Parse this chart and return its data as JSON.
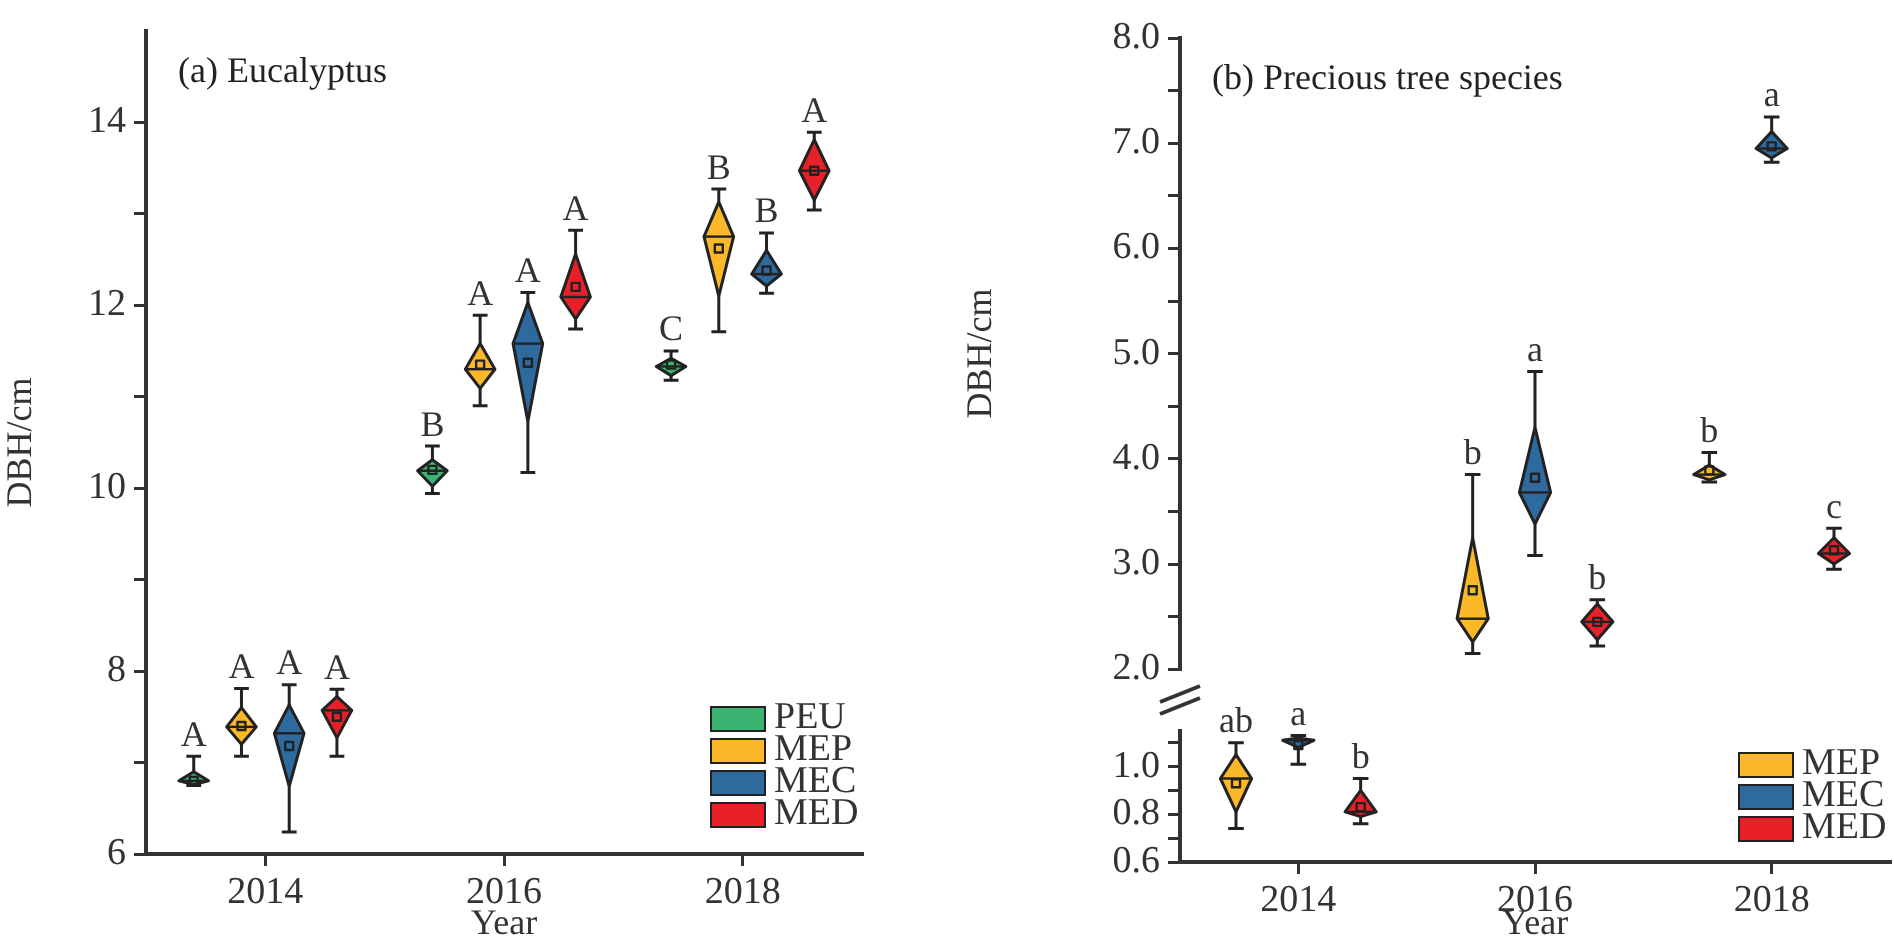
{
  "chart_data": [
    {
      "type": "box",
      "title": "(a) Eucalyptus",
      "xlabel": "Year",
      "ylabel": "DBH/cm",
      "categories": [
        "2014",
        "2016",
        "2018"
      ],
      "ylim": [
        6,
        15
      ],
      "yticks": [
        6,
        {
          "value": 7,
          "label": null
        },
        8,
        {
          "value": 9,
          "label": null
        },
        10,
        {
          "value": 11,
          "label": null
        },
        12,
        {
          "value": 13,
          "label": null
        },
        14
      ],
      "legend": "bottom right",
      "series": [
        {
          "name": "PEU",
          "color": "#3cb371",
          "value_labels": [
            "A",
            "B",
            "C"
          ],
          "boxes": [
            {
              "low": 6.75,
              "q1": 6.76,
              "median": 6.8,
              "q3": 6.9,
              "high": 7.07,
              "mean": 6.8
            },
            {
              "low": 9.94,
              "q1": 10.02,
              "median": 10.19,
              "q3": 10.31,
              "high": 10.46,
              "mean": 10.2
            },
            {
              "low": 11.18,
              "q1": 11.23,
              "median": 11.33,
              "q3": 11.42,
              "high": 11.5,
              "mean": 11.35
            }
          ]
        },
        {
          "name": "MEP",
          "color": "#fbb829",
          "value_labels": [
            "A",
            "A",
            "B"
          ],
          "boxes": [
            {
              "low": 7.07,
              "q1": 7.2,
              "median": 7.39,
              "q3": 7.6,
              "high": 7.81,
              "mean": 7.4
            },
            {
              "low": 10.9,
              "q1": 11.09,
              "median": 11.3,
              "q3": 11.58,
              "high": 11.89,
              "mean": 11.35
            },
            {
              "low": 11.71,
              "q1": 12.1,
              "median": 12.75,
              "q3": 13.13,
              "high": 13.27,
              "mean": 12.62
            }
          ]
        },
        {
          "name": "MEC",
          "color": "#2e6a9e",
          "value_labels": [
            "A",
            "A",
            "B"
          ],
          "boxes": [
            {
              "low": 6.24,
              "q1": 6.74,
              "median": 7.32,
              "q3": 7.63,
              "high": 7.85,
              "mean": 7.18
            },
            {
              "low": 10.17,
              "q1": 10.73,
              "median": 11.58,
              "q3": 12.03,
              "high": 12.14,
              "mean": 11.37
            },
            {
              "low": 12.13,
              "q1": 12.21,
              "median": 12.34,
              "q3": 12.6,
              "high": 12.79,
              "mean": 12.38
            }
          ]
        },
        {
          "name": "MED",
          "color": "#e8202a",
          "value_labels": [
            "A",
            "A",
            "A"
          ],
          "boxes": [
            {
              "low": 7.07,
              "q1": 7.27,
              "median": 7.57,
              "q3": 7.72,
              "high": 7.8,
              "mean": 7.5
            },
            {
              "low": 11.74,
              "q1": 11.85,
              "median": 12.09,
              "q3": 12.56,
              "high": 12.82,
              "mean": 12.2
            },
            {
              "low": 13.04,
              "q1": 13.15,
              "median": 13.47,
              "q3": 13.81,
              "high": 13.89,
              "mean": 13.47
            }
          ]
        }
      ]
    },
    {
      "type": "box",
      "title": "(b) Precious tree species",
      "ylabel": "DBH/cm",
      "categories": [
        "2014",
        "2016",
        "2018"
      ],
      "ylim": [
        2,
        8
      ],
      "yticks": [
        {
          "value": 2,
          "label": "2.0"
        },
        {
          "value": 2.5,
          "label": null
        },
        {
          "value": 3,
          "label": "3.0"
        },
        {
          "value": 3.5,
          "label": null
        },
        {
          "value": 4,
          "label": "4.0"
        },
        {
          "value": 4.5,
          "label": null
        },
        {
          "value": 5,
          "label": "5.0"
        },
        {
          "value": 5.5,
          "label": null
        },
        {
          "value": 6,
          "label": "6.0"
        },
        {
          "value": 6.5,
          "label": null
        },
        {
          "value": 7,
          "label": "7.0"
        },
        {
          "value": 7.5,
          "label": null
        },
        {
          "value": 8,
          "label": "8.0"
        }
      ],
      "tick_labels": "y",
      "series": [
        {
          "color": "#fbb829",
          "value_labels": [
            null,
            "b",
            "b"
          ],
          "boxes": [
            null,
            {
              "low": 2.15,
              "q1": 2.26,
              "median": 2.48,
              "q3": 3.25,
              "high": 3.85,
              "mean": 2.75
            },
            {
              "low": 3.78,
              "q1": 3.8,
              "median": 3.85,
              "q3": 3.94,
              "high": 4.06,
              "mean": 3.89
            }
          ]
        },
        {
          "color": "#2e6a9e",
          "value_labels": [
            null,
            "a",
            "a"
          ],
          "boxes": [
            null,
            {
              "low": 3.08,
              "q1": 3.38,
              "median": 3.68,
              "q3": 4.3,
              "high": 4.83,
              "mean": 3.82
            },
            {
              "low": 6.82,
              "q1": 6.86,
              "median": 6.95,
              "q3": 7.11,
              "high": 7.25,
              "mean": 6.97
            }
          ]
        },
        {
          "color": "#e8202a",
          "value_labels": [
            null,
            "b",
            "c"
          ],
          "boxes": [
            null,
            {
              "low": 2.22,
              "q1": 2.28,
              "median": 2.45,
              "q3": 2.62,
              "high": 2.66,
              "mean": 2.45
            },
            {
              "low": 2.95,
              "q1": 3.0,
              "median": 3.1,
              "q3": 3.25,
              "high": 3.34,
              "mean": 3.13
            }
          ]
        }
      ]
    },
    {
      "type": "box",
      "xlabel": "Year",
      "categories": [
        "2014",
        "2016",
        "2018"
      ],
      "ylim": [
        0.6,
        1.15
      ],
      "yticks": [
        0.6,
        {
          "value": 0.7,
          "label": null
        },
        0.8,
        {
          "value": 0.9,
          "label": null
        },
        {
          "value": 1,
          "label": "1.0"
        },
        {
          "value": 1.1,
          "label": null
        }
      ],
      "legend": "right",
      "series": [
        {
          "name": "MEP",
          "color": "#fbb829",
          "value_labels": [
            "ab",
            null,
            null
          ],
          "boxes": [
            {
              "low": 0.74,
              "q1": 0.81,
              "median": 0.95,
              "q3": 1.05,
              "high": 1.1,
              "mean": 0.93
            },
            null,
            null
          ]
        },
        {
          "name": "MEC",
          "color": "#2e6a9e",
          "value_labels": [
            "a",
            null,
            null
          ],
          "boxes": [
            {
              "low": 1.01,
              "q1": 1.08,
              "median": 1.11,
              "q3": 1.12,
              "high": 1.13,
              "mean": 1.09
            },
            null,
            null
          ]
        },
        {
          "name": "MED",
          "color": "#e8202a",
          "value_labels": [
            "b",
            null,
            null
          ],
          "boxes": [
            {
              "low": 0.76,
              "q1": 0.79,
              "median": 0.81,
              "q3": 0.9,
              "high": 0.95,
              "mean": 0.83
            },
            null,
            null
          ]
        }
      ]
    }
  ]
}
